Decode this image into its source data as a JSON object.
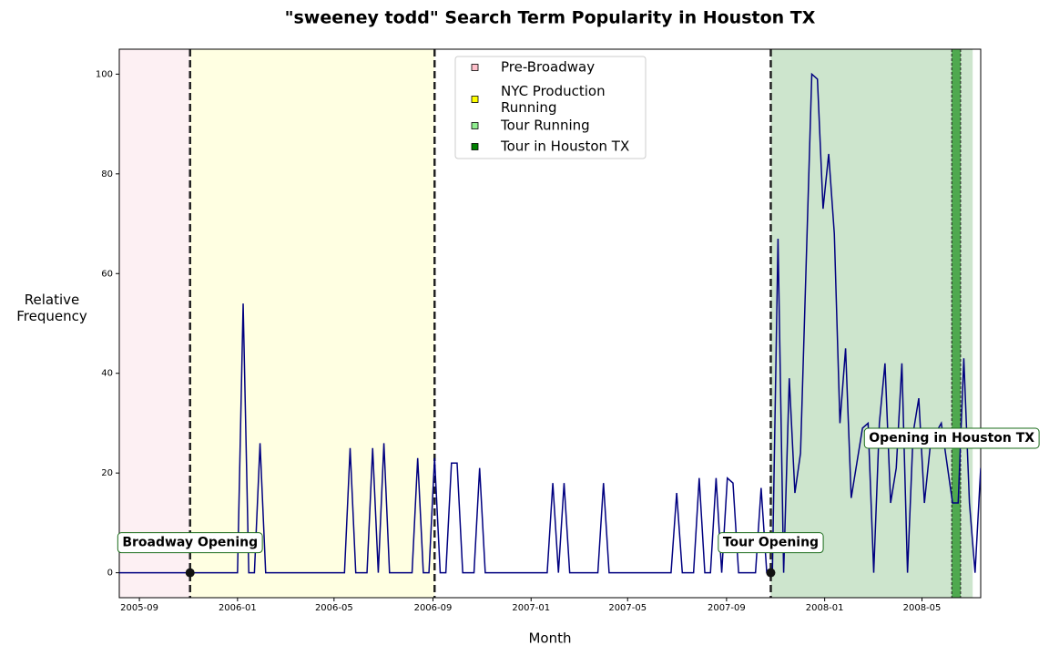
{
  "chart_data": {
    "type": "line",
    "title": "\"sweeney todd\" Search Term Popularity in Houston TX",
    "x_label": "Month",
    "y_label": "Relative Frequency",
    "color": "#000080",
    "x": [
      "2005-08-07",
      "2005-08-14",
      "2005-08-21",
      "2005-08-28",
      "2005-09-04",
      "2005-09-11",
      "2005-09-18",
      "2005-09-25",
      "2005-10-02",
      "2005-10-09",
      "2005-10-16",
      "2005-10-23",
      "2005-10-30",
      "2005-11-06",
      "2005-11-13",
      "2005-11-20",
      "2005-11-27",
      "2005-12-04",
      "2005-12-11",
      "2005-12-18",
      "2005-12-25",
      "2006-01-01",
      "2006-01-08",
      "2006-01-15",
      "2006-01-22",
      "2006-01-29",
      "2006-02-05",
      "2006-02-12",
      "2006-02-19",
      "2006-02-26",
      "2006-03-05",
      "2006-03-12",
      "2006-03-19",
      "2006-03-26",
      "2006-04-02",
      "2006-04-09",
      "2006-04-16",
      "2006-04-23",
      "2006-04-30",
      "2006-05-07",
      "2006-05-14",
      "2006-05-21",
      "2006-05-28",
      "2006-06-04",
      "2006-06-11",
      "2006-06-18",
      "2006-06-25",
      "2006-07-02",
      "2006-07-09",
      "2006-07-16",
      "2006-07-23",
      "2006-07-30",
      "2006-08-06",
      "2006-08-13",
      "2006-08-20",
      "2006-08-27",
      "2006-09-03",
      "2006-09-10",
      "2006-09-17",
      "2006-09-24",
      "2006-10-01",
      "2006-10-08",
      "2006-10-15",
      "2006-10-22",
      "2006-10-29",
      "2006-11-05",
      "2006-11-12",
      "2006-11-19",
      "2006-11-26",
      "2006-12-03",
      "2006-12-10",
      "2006-12-17",
      "2006-12-24",
      "2006-12-31",
      "2007-01-07",
      "2007-01-14",
      "2007-01-21",
      "2007-01-28",
      "2007-02-04",
      "2007-02-11",
      "2007-02-18",
      "2007-02-25",
      "2007-03-04",
      "2007-03-11",
      "2007-03-18",
      "2007-03-25",
      "2007-04-01",
      "2007-04-08",
      "2007-04-15",
      "2007-04-22",
      "2007-04-29",
      "2007-05-06",
      "2007-05-13",
      "2007-05-20",
      "2007-05-27",
      "2007-06-03",
      "2007-06-10",
      "2007-06-17",
      "2007-06-24",
      "2007-07-01",
      "2007-07-08",
      "2007-07-15",
      "2007-07-22",
      "2007-07-29",
      "2007-08-05",
      "2007-08-12",
      "2007-08-19",
      "2007-08-26",
      "2007-09-02",
      "2007-09-09",
      "2007-09-16",
      "2007-09-23",
      "2007-09-30",
      "2007-10-07",
      "2007-10-14",
      "2007-10-21",
      "2007-10-28",
      "2007-11-04",
      "2007-11-11",
      "2007-11-18",
      "2007-11-25",
      "2007-12-02",
      "2007-12-09",
      "2007-12-16",
      "2007-12-23",
      "2007-12-30",
      "2008-01-06",
      "2008-01-13",
      "2008-01-20",
      "2008-01-27",
      "2008-02-03",
      "2008-02-10",
      "2008-02-17",
      "2008-02-24",
      "2008-03-02",
      "2008-03-09",
      "2008-03-16",
      "2008-03-23",
      "2008-03-30",
      "2008-04-06",
      "2008-04-13",
      "2008-04-20",
      "2008-04-27",
      "2008-05-04",
      "2008-05-11",
      "2008-05-18",
      "2008-05-25",
      "2008-06-01",
      "2008-06-08",
      "2008-06-15",
      "2008-06-22",
      "2008-06-29",
      "2008-07-06",
      "2008-07-13"
    ],
    "values": [
      0,
      0,
      0,
      0,
      0,
      0,
      0,
      0,
      0,
      0,
      0,
      0,
      0,
      0,
      0,
      0,
      0,
      0,
      0,
      0,
      0,
      0,
      54,
      0,
      0,
      26,
      0,
      0,
      0,
      0,
      0,
      0,
      0,
      0,
      0,
      0,
      0,
      0,
      0,
      0,
      0,
      25,
      0,
      0,
      0,
      25,
      0,
      26,
      0,
      0,
      0,
      0,
      0,
      23,
      0,
      0,
      23,
      0,
      0,
      22,
      22,
      0,
      0,
      0,
      21,
      0,
      0,
      0,
      0,
      0,
      0,
      0,
      0,
      0,
      0,
      0,
      0,
      18,
      0,
      18,
      0,
      0,
      0,
      0,
      0,
      0,
      18,
      0,
      0,
      0,
      0,
      0,
      0,
      0,
      0,
      0,
      0,
      0,
      0,
      16,
      0,
      0,
      0,
      19,
      0,
      0,
      19,
      0,
      19,
      18,
      0,
      0,
      0,
      0,
      17,
      0,
      0,
      67,
      0,
      39,
      16,
      24,
      62,
      100,
      99,
      73,
      84,
      68,
      30,
      45,
      15,
      22,
      29,
      30,
      0,
      30,
      42,
      14,
      21,
      42,
      0,
      28,
      35,
      14,
      25,
      28,
      30,
      22,
      14,
      14,
      43,
      14,
      0,
      21
    ],
    "xlim": [
      "2005-08-07",
      "2008-07-13"
    ],
    "xticks": [
      "2005-09",
      "2006-01",
      "2006-05",
      "2006-09",
      "2007-01",
      "2007-05",
      "2007-09",
      "2008-01",
      "2008-05"
    ],
    "ylim": [
      -5,
      105
    ],
    "yticks": [
      0,
      20,
      40,
      60,
      80,
      100
    ],
    "spans": [
      {
        "name": "Pre-Broadway",
        "color": "#ffc0cb",
        "fill": "#fdf0f3",
        "start": "2005-08-07",
        "end": "2005-11-03"
      },
      {
        "name": "NYC Production Running",
        "color": "#ffff00",
        "fill": "#ffffe2",
        "start": "2005-11-03",
        "end": "2006-09-03"
      },
      {
        "name": "Tour Running",
        "color": "#90ee90",
        "fill": "#cde5cd",
        "start": "2007-10-26",
        "end": "2008-07-03"
      },
      {
        "name": "Tour in Houston TX",
        "color": "#008000",
        "fill": "#4fa94f",
        "start": "2008-06-07",
        "end": "2008-06-18"
      }
    ],
    "vlines": [
      "2005-11-03",
      "2006-09-03",
      "2007-10-26"
    ],
    "events": [
      {
        "label": "Broadway Opening",
        "date": "2005-11-03",
        "point": 0
      },
      {
        "label": "Tour Opening",
        "date": "2007-10-26",
        "point": 0
      },
      {
        "label": "Opening in Houston TX",
        "date": "2008-06-07"
      }
    ],
    "legend": "upper center"
  }
}
